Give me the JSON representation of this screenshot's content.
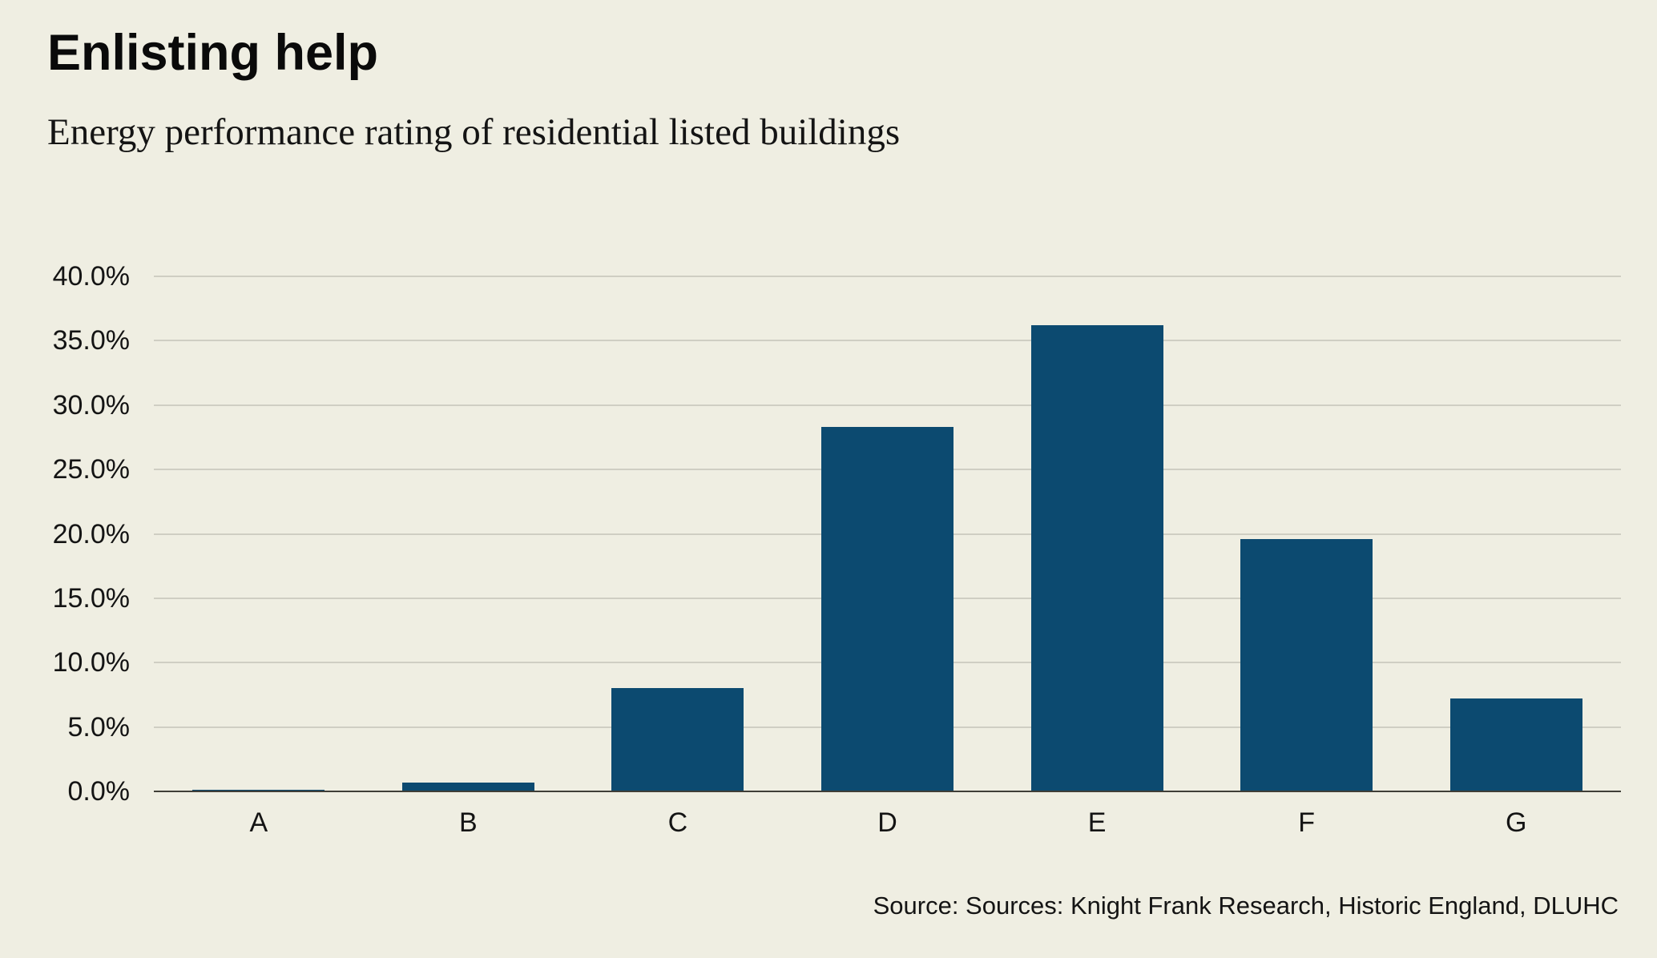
{
  "header": {
    "title": "Enlisting help",
    "subtitle": "Energy performance rating of residential listed buildings"
  },
  "footer": {
    "source": "Source: Sources: Knight Frank Research, Historic England, DLUHC"
  },
  "chart_data": {
    "type": "bar",
    "title": "Enlisting help",
    "subtitle": "Energy performance rating of residential listed buildings",
    "categories": [
      "A",
      "B",
      "C",
      "D",
      "E",
      "F",
      "G"
    ],
    "values": [
      0.1,
      0.7,
      8.0,
      28.3,
      36.2,
      19.6,
      7.2
    ],
    "xlabel": "",
    "ylabel": "",
    "ylim": [
      0,
      40
    ],
    "ytick_step": 5,
    "ytick_labels": [
      "0.0%",
      "5.0%",
      "10.0%",
      "15.0%",
      "20.0%",
      "25.0%",
      "30.0%",
      "35.0%",
      "40.0%"
    ],
    "grid": true,
    "legend": "none",
    "source": "Source: Sources: Knight Frank Research, Historic England, DLUHC",
    "colors": {
      "bar": "#0c4a70",
      "background": "#efeee2",
      "gridline": "#c9c8bd",
      "axis": "#3f3e37",
      "text": "#141414"
    }
  }
}
